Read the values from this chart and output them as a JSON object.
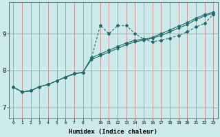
{
  "xlabel": "Humidex (Indice chaleur)",
  "background_color": "#cceaea",
  "plot_bg_color": "#cceaea",
  "grid_color": "#d08888",
  "line_color": "#1a6b6b",
  "xlim": [
    -0.5,
    23.5
  ],
  "ylim": [
    6.7,
    9.85
  ],
  "yticks": [
    7,
    8,
    9
  ],
  "xtick_labels": [
    "0",
    "1",
    "2",
    "3",
    "4",
    "5",
    "6",
    "7",
    "8",
    "",
    "10",
    "11",
    "12",
    "13",
    "14",
    "15",
    "16",
    "17",
    "18",
    "19",
    "20",
    "21",
    "22",
    "23"
  ],
  "line1_x": [
    0,
    1,
    2,
    3,
    4,
    5,
    6,
    7,
    8,
    9,
    10,
    11,
    12,
    13,
    14,
    15,
    16,
    17,
    18,
    19,
    20,
    21,
    22,
    23
  ],
  "line1_y": [
    7.55,
    7.42,
    7.45,
    7.56,
    7.62,
    7.72,
    7.82,
    7.92,
    7.95,
    8.35,
    9.22,
    9.0,
    9.22,
    9.22,
    9.0,
    8.85,
    8.78,
    8.82,
    8.88,
    8.95,
    9.05,
    9.18,
    9.28,
    9.52
  ],
  "line2_x": [
    0,
    1,
    2,
    3,
    4,
    5,
    6,
    7,
    8,
    9,
    10,
    11,
    12,
    13,
    14,
    15,
    16,
    17,
    18,
    19,
    20,
    21,
    22,
    23
  ],
  "line2_y": [
    7.55,
    7.42,
    7.45,
    7.56,
    7.62,
    7.72,
    7.82,
    7.92,
    7.95,
    8.35,
    8.45,
    8.55,
    8.65,
    8.75,
    8.82,
    8.85,
    8.9,
    9.0,
    9.1,
    9.2,
    9.3,
    9.42,
    9.52,
    9.58
  ],
  "line3_x": [
    0,
    1,
    2,
    3,
    4,
    5,
    6,
    7,
    8,
    9,
    10,
    11,
    12,
    13,
    14,
    15,
    16,
    17,
    18,
    19,
    20,
    21,
    22,
    23
  ],
  "line3_y": [
    7.55,
    7.42,
    7.45,
    7.56,
    7.62,
    7.72,
    7.82,
    7.9,
    7.95,
    8.3,
    8.4,
    8.5,
    8.6,
    8.7,
    8.78,
    8.82,
    8.88,
    8.95,
    9.05,
    9.15,
    9.25,
    9.38,
    9.48,
    9.55
  ]
}
